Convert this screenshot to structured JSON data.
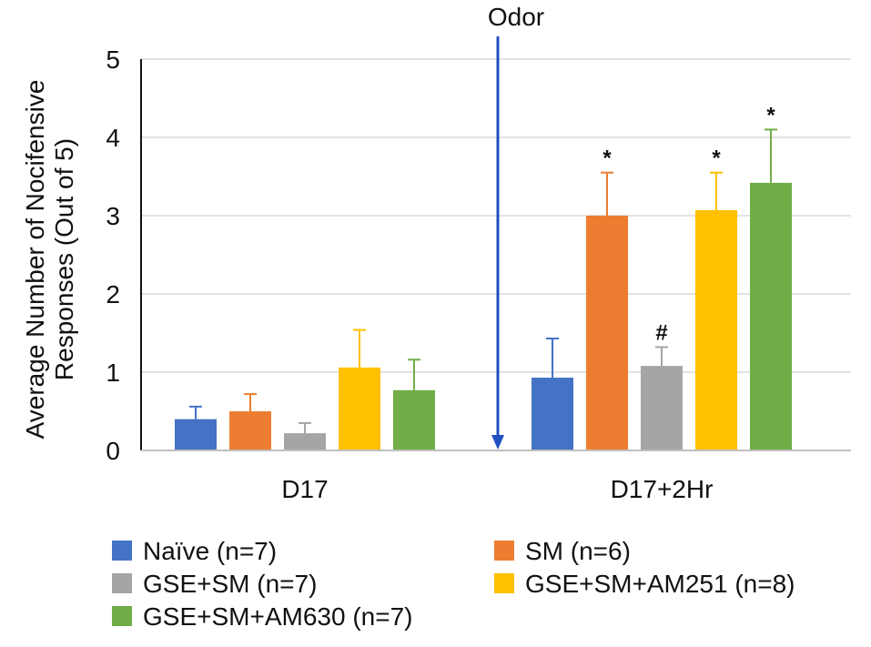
{
  "chart_data": {
    "type": "bar",
    "title": "",
    "ylabel_line1": "Average Number of Nocifensive",
    "ylabel_line2": "Responses (Out of 5)",
    "xlabel": "",
    "ylim": [
      0,
      5
    ],
    "yticks": [
      "0",
      "1",
      "2",
      "3",
      "4",
      "5"
    ],
    "categories": [
      "D17",
      "D17+2Hr"
    ],
    "series": [
      {
        "name": "Naïve (n=7)",
        "color": "#4472C4",
        "values": [
          0.4,
          0.93
        ],
        "errors": [
          0.16,
          0.5
        ],
        "annotations": [
          "",
          ""
        ]
      },
      {
        "name": "SM (n=6)",
        "color": "#ED7D31",
        "values": [
          0.5,
          3.0
        ],
        "errors": [
          0.22,
          0.55
        ],
        "annotations": [
          "",
          "*"
        ]
      },
      {
        "name": "GSE+SM (n=7)",
        "color": "#A5A5A5",
        "values": [
          0.22,
          1.08
        ],
        "errors": [
          0.13,
          0.24
        ],
        "annotations": [
          "",
          "#"
        ]
      },
      {
        "name": "GSE+SM+AM251 (n=8)",
        "color": "#FFC000",
        "values": [
          1.06,
          3.07
        ],
        "errors": [
          0.48,
          0.48
        ],
        "annotations": [
          "",
          "*"
        ]
      },
      {
        "name": "GSE+SM+AM630 (n=7)",
        "color": "#70AD47",
        "values": [
          0.77,
          3.42
        ],
        "errors": [
          0.39,
          0.68
        ],
        "annotations": [
          "",
          "*"
        ]
      }
    ],
    "marker": {
      "label": "Odor",
      "color": "#1F4FC1"
    },
    "grid": true,
    "legend_position": "bottom"
  }
}
